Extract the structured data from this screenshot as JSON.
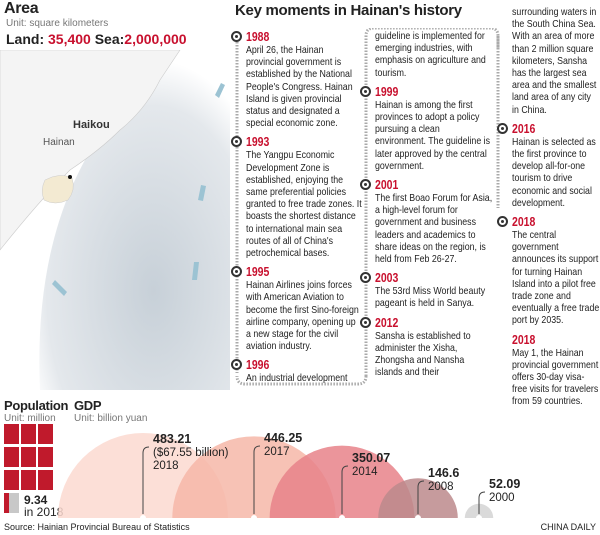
{
  "area": {
    "title": "Area",
    "unit": "Unit: square kilometers",
    "land_label": "Land:",
    "land_value": "35,400",
    "sea_label": "Sea:",
    "sea_value": "2,000,000",
    "city": "Haikou",
    "island": "Hainan"
  },
  "timeline": {
    "title": "Key moments in Hainan's history",
    "events": [
      {
        "year": "1988",
        "text": "April 26, the Hainan provincial government is established by the National People's Congress. Hainan Island is given provincial status and designated a special economic zone."
      },
      {
        "year": "1993",
        "text": "The Yangpu Economic Development Zone is established, enjoying the same preferential policies granted to free trade zones. It boasts the shortest distance to international main sea routes of all of China's petrochemical bases."
      },
      {
        "year": "1995",
        "text": "Hainan Airlines joins forces with American Aviation to become the first Sino-foreign airline company, opening up a new stage for the civil aviation industry."
      },
      {
        "year": "1996",
        "text": "An industrial development"
      },
      {
        "year": "",
        "text": "guideline is implemented for emerging industries, with emphasis on agriculture and tourism."
      },
      {
        "year": "1999",
        "text": "Hainan is among the first provinces to adopt a policy pursuing a clean environment. The guideline is later approved by the central government."
      },
      {
        "year": "2001",
        "text": "The first Boao Forum for Asia, a high-level forum for government and business leaders and academics to share ideas on the region, is held from Feb 26-27."
      },
      {
        "year": "2003",
        "text": "The 53rd Miss World beauty pageant is held in Sanya."
      },
      {
        "year": "2012",
        "text": "Sansha is established to administer the Xisha, Zhongsha and Nansha islands and their"
      },
      {
        "year": "",
        "text": "surrounding waters in the South China Sea. With an area of more than 2 million square kilometers, Sansha has the largest sea area and the smallest land area of any city in China."
      },
      {
        "year": "2016",
        "text": "Hainan is selected as the first province to develop all-for-one tourism to drive economic and social development."
      },
      {
        "year": "2018",
        "text": "The central government announces its support for turning Hainan Island into a pilot free trade zone and eventually a free trade port by 2035."
      },
      {
        "year": "2018",
        "text": "May 1, the Hainan provincial government offers 30-day visa-free visits for travelers from 59 countries."
      }
    ]
  },
  "population": {
    "title": "Population",
    "unit": "Unit: million",
    "value": "9.34",
    "caption": "in 2018",
    "value_num": 9.34,
    "color": "#c01a2c"
  },
  "chart_data": {
    "type": "bar",
    "title": "GDP",
    "unit": "Unit: billion yuan",
    "categories": [
      "2018",
      "2017",
      "2014",
      "2008",
      "2000"
    ],
    "values": [
      483.21,
      446.25,
      350.07,
      146.6,
      52.09
    ],
    "labels": [
      "483.21",
      "446.25",
      "350.07",
      "146.6",
      "52.09"
    ],
    "note_2018": "($67.55 billion)",
    "colors": [
      "#fbd9d0",
      "#f6b7a8",
      "#e8828a",
      "#bc8a8c",
      "#d3d3d3"
    ]
  },
  "footer": {
    "source": "Source: Hainian Provincial Bureau of Statistics",
    "brand": "CHINA DAILY"
  }
}
